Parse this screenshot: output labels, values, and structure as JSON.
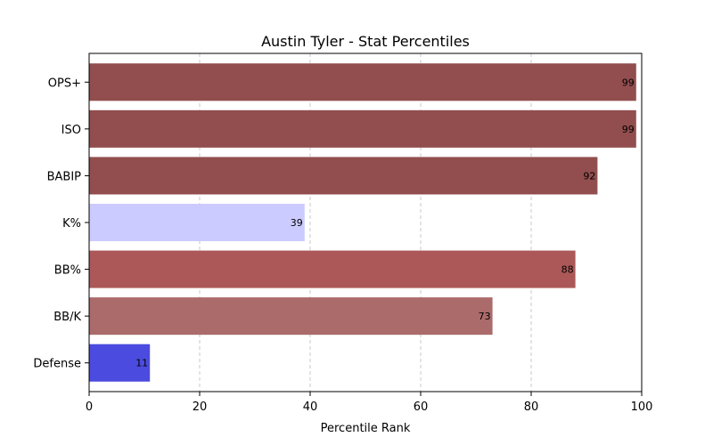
{
  "chart_data": {
    "type": "bar",
    "orientation": "horizontal",
    "title": "Austin Tyler - Stat Percentiles",
    "xlabel": "Percentile Rank",
    "ylabel": "",
    "xlim": [
      0,
      100
    ],
    "xticks": [
      0,
      20,
      40,
      60,
      80,
      100
    ],
    "grid": "x-dashed",
    "categories": [
      "OPS+",
      "ISO",
      "BABIP",
      "K%",
      "BB%",
      "BB/K",
      "Defense"
    ],
    "values": [
      99,
      99,
      92,
      39,
      88,
      73,
      11
    ],
    "colors": [
      "#924e4e",
      "#924e4e",
      "#924e4e",
      "#cbcbff",
      "#ac5858",
      "#ac6b6b",
      "#4b4bdf"
    ]
  }
}
